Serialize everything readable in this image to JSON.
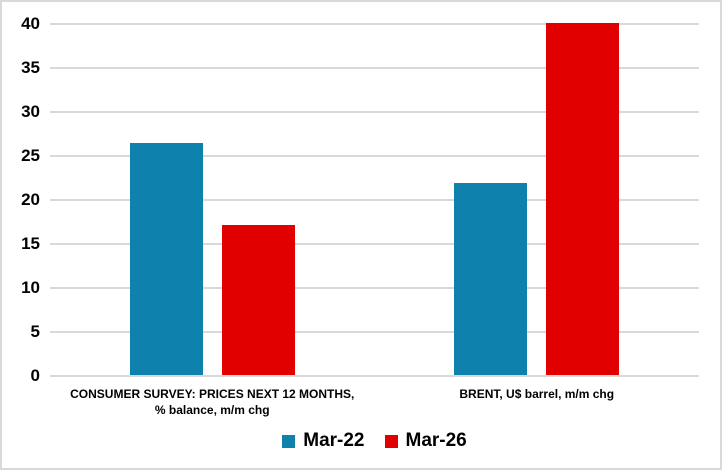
{
  "chart_data": {
    "type": "bar",
    "title": "",
    "categories": [
      {
        "lines": [
          "CONSUMER SURVEY: PRICES NEXT 12 MONTHS,",
          "% balance, m/m chg"
        ]
      },
      {
        "lines": [
          "BRENT, U$ barrel, m/m chg"
        ]
      }
    ],
    "series": [
      {
        "name": "Mar-22",
        "color": "#0f81ad",
        "values": [
          26.4,
          21.8
        ]
      },
      {
        "name": "Mar-26",
        "color": "#e00000",
        "values": [
          17.1,
          40
        ]
      }
    ],
    "ylim": [
      0,
      40
    ],
    "yticks": [
      0,
      5,
      10,
      15,
      20,
      25,
      30,
      35,
      40
    ],
    "grid": true,
    "gridline_color": "#d9d9d9",
    "axis_line_color": "#d9d9d9",
    "text_color": "#000000",
    "legend_position": "bottom",
    "legend": [
      "Mar-22",
      "Mar-26"
    ],
    "xlabel": "",
    "ylabel": ""
  }
}
